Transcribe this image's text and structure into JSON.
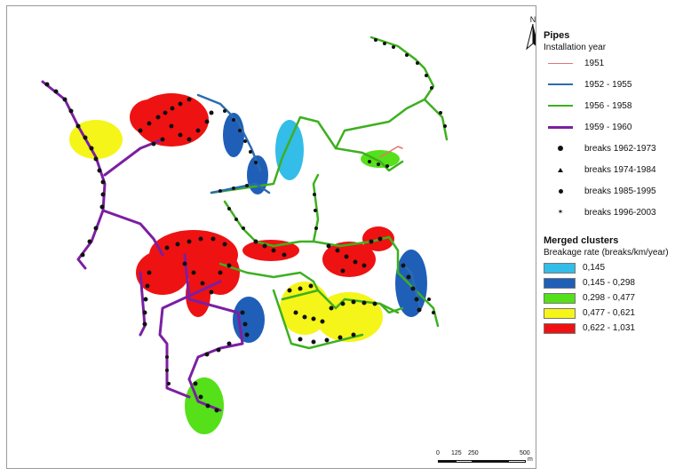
{
  "legend": {
    "pipes_title": "Pipes",
    "installation_subtitle": "Installation year",
    "pipe_years": [
      {
        "label": "1951",
        "color": "#e57373"
      },
      {
        "label": "1952 - 1955",
        "color": "#2b6cb0"
      },
      {
        "label": "1956 - 1958",
        "color": "#3db01f"
      },
      {
        "label": "1959 - 1960",
        "color": "#7b1fa2"
      }
    ],
    "breaks": [
      {
        "label": "breaks 1962-1973",
        "symbol": "circle"
      },
      {
        "label": "breaks 1974-1984",
        "symbol": "triangle"
      },
      {
        "label": "breaks 1985-1995",
        "symbol": "dot"
      },
      {
        "label": "breaks 1996-2003",
        "symbol": "star"
      }
    ],
    "clusters_title": "Merged clusters",
    "clusters_subtitle": "Breakage rate (breaks/km/year)",
    "clusters": [
      {
        "label": "0,145",
        "color": "#33bde8"
      },
      {
        "label": "0,145 - 0,298",
        "color": "#1f5fb8"
      },
      {
        "label": "0,298 - 0,477",
        "color": "#55e01a"
      },
      {
        "label": "0,477 - 0,621",
        "color": "#f5f51a"
      },
      {
        "label": "0,622 - 1,031",
        "color": "#ee1212"
      }
    ]
  },
  "north_label": "N",
  "scale": {
    "ticks": [
      "0",
      "125",
      "250",
      "500"
    ],
    "unit": "m"
  }
}
